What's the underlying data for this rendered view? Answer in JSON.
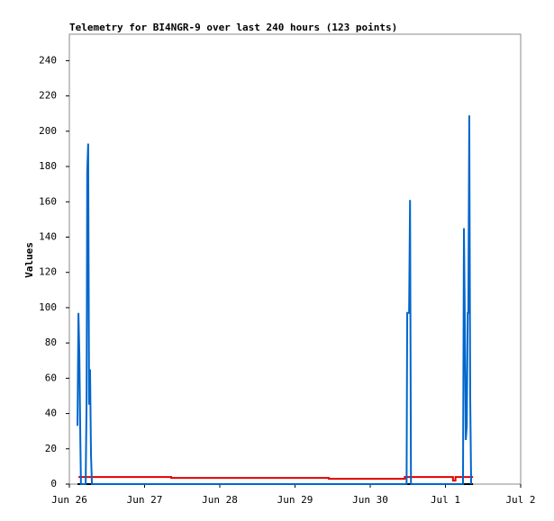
{
  "chart_data": {
    "type": "line",
    "title": "Telemetry for BI4NGR-9 over last 240 hours (123 points)",
    "y_label": "Values",
    "xlim": [
      0,
      144
    ],
    "xticks": [
      {
        "value": 0,
        "label": "Jun 26"
      },
      {
        "value": 24,
        "label": "Jun 27"
      },
      {
        "value": 48,
        "label": "Jun 28"
      },
      {
        "value": 72,
        "label": "Jun 29"
      },
      {
        "value": 96,
        "label": "Jun 30"
      },
      {
        "value": 120,
        "label": "Jul 1"
      },
      {
        "value": 144,
        "label": "Jul 2"
      }
    ],
    "ylim": [
      0,
      255
    ],
    "yticks": [
      0,
      20,
      40,
      60,
      80,
      100,
      120,
      140,
      160,
      180,
      200,
      220,
      240
    ],
    "series": [
      {
        "color": "#000000",
        "x": [
          2.6,
          128.8
        ],
        "values": [
          0,
          0
        ]
      },
      {
        "color": "#e00000",
        "x": [
          2.9,
          32.5,
          32.5,
          82.8,
          82.8,
          107,
          107,
          122.4,
          122.4,
          123.2,
          123.2,
          128.8
        ],
        "values": [
          4,
          4,
          3.5,
          3.5,
          3,
          3,
          4,
          4,
          2,
          2,
          4,
          4
        ]
      },
      {
        "color": "#0066cc",
        "x": [
          2.6,
          2.9,
          3.2,
          3.5,
          3.7,
          5.2,
          5.5,
          5.7,
          6.0,
          6.3,
          6.6,
          6.9,
          7.2,
          107.6,
          107.8,
          108.4,
          108.7,
          109.0,
          125.6,
          125.9,
          126.2,
          126.5,
          126.8,
          127.1,
          127.3,
          127.6,
          127.9,
          128.2
        ],
        "values": [
          33,
          97,
          73,
          25,
          0,
          0,
          49,
          177,
          193,
          45,
          65,
          17,
          0,
          0,
          97,
          97,
          161,
          0,
          0,
          145,
          89,
          25,
          33,
          97,
          97,
          209,
          49,
          0
        ]
      }
    ]
  }
}
